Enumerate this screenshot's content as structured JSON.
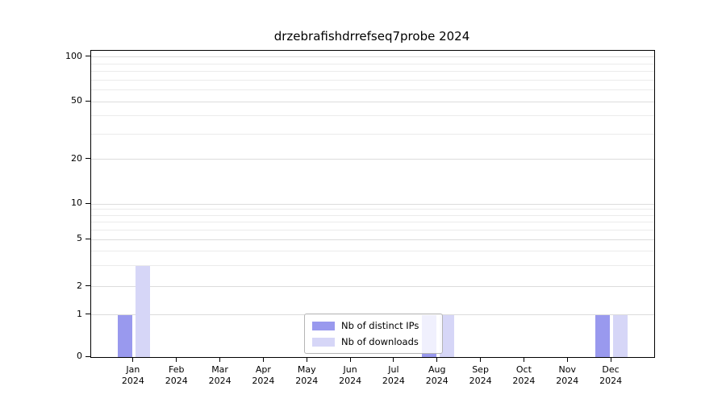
{
  "chart_data": {
    "type": "bar",
    "title": "drzebrafishdrrefseq7probe 2024",
    "x": {
      "months": [
        "Jan",
        "Feb",
        "Mar",
        "Apr",
        "May",
        "Jun",
        "Jul",
        "Aug",
        "Sep",
        "Oct",
        "Nov",
        "Dec"
      ],
      "year": "2024"
    },
    "series": [
      {
        "name": "Nb of distinct IPs",
        "color": "#9999ee",
        "values": [
          1,
          0,
          0,
          0,
          0,
          0,
          0,
          1,
          0,
          0,
          0,
          1
        ]
      },
      {
        "name": "Nb of downloads",
        "color": "#d6d6f7",
        "values": [
          3,
          0,
          0,
          0,
          0,
          0,
          0,
          1,
          0,
          0,
          0,
          1
        ]
      }
    ],
    "yticks": [
      0,
      1,
      2,
      5,
      10,
      20,
      50,
      100
    ],
    "minor_gridlines": [
      3,
      4,
      6,
      7,
      8,
      9,
      30,
      40,
      60,
      70,
      80,
      90
    ],
    "y_scale_anchors": [
      [
        0,
        0.0
      ],
      [
        1,
        0.137
      ],
      [
        2,
        0.229
      ],
      [
        5,
        0.384
      ],
      [
        10,
        0.5
      ],
      [
        20,
        0.645
      ],
      [
        50,
        0.834
      ],
      [
        100,
        0.979
      ]
    ],
    "ylim": [
      0,
      110
    ],
    "grid": true,
    "legend_position": "lower-center"
  },
  "colors": {
    "background": "#ffffff",
    "axis": "#000000",
    "grid_major": "#dcdcdc",
    "grid_minor": "#ebebeb",
    "legend_border": "#b5b5b5"
  }
}
